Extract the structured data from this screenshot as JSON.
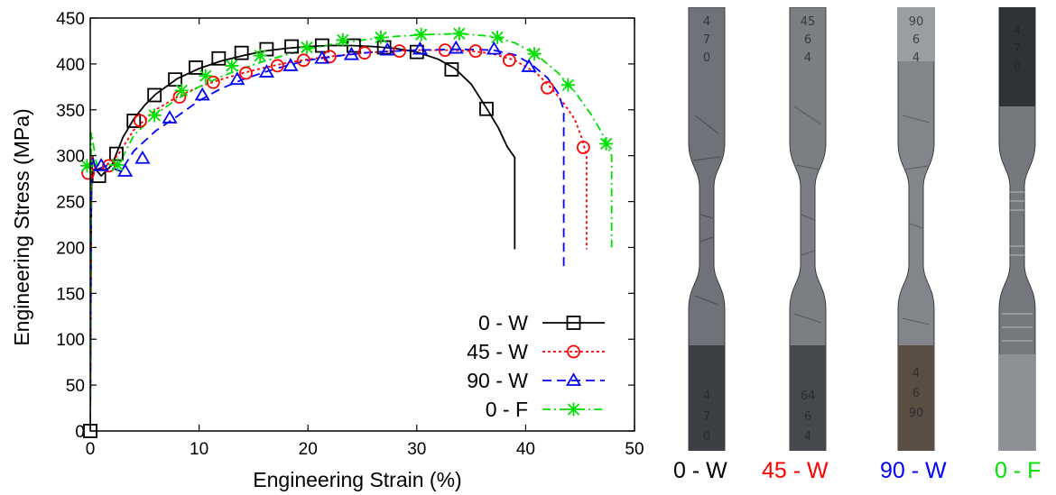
{
  "colors": {
    "s0w": "#000000",
    "s45w": "#ff0000",
    "s90w": "#0000ff",
    "s0f": "#00e000"
  },
  "chart_data": {
    "type": "line",
    "xlabel": "Engineering Strain (%)",
    "ylabel": "Engineering Stress (MPa)",
    "xlim": [
      0,
      50
    ],
    "ylim": [
      0,
      450
    ],
    "xticks": [
      0,
      10,
      20,
      30,
      40,
      50
    ],
    "yticks": [
      0,
      50,
      100,
      150,
      200,
      250,
      300,
      350,
      400,
      450
    ],
    "legend_position": "bottom-right",
    "series": [
      {
        "name": "0 - W",
        "color": "#000000",
        "line_style": "solid",
        "marker": "square",
        "points": [
          [
            0,
            0
          ],
          [
            0.1,
            250
          ],
          [
            0.2,
            300
          ],
          [
            0.5,
            285
          ],
          [
            1,
            278
          ],
          [
            2,
            290
          ],
          [
            3,
            320
          ],
          [
            4,
            340
          ],
          [
            5,
            355
          ],
          [
            6,
            367
          ],
          [
            8,
            384
          ],
          [
            10,
            395
          ],
          [
            12,
            403
          ],
          [
            14,
            409
          ],
          [
            16,
            414
          ],
          [
            18,
            417
          ],
          [
            20,
            419
          ],
          [
            22,
            420
          ],
          [
            24,
            420
          ],
          [
            26,
            419
          ],
          [
            28,
            417
          ],
          [
            30,
            413
          ],
          [
            32,
            405
          ],
          [
            33.5,
            395
          ],
          [
            35,
            378
          ],
          [
            36.5,
            350
          ],
          [
            37.5,
            330
          ],
          [
            38.3,
            310
          ],
          [
            39,
            298
          ],
          [
            39,
            198
          ]
        ],
        "markers": [
          [
            0,
            0
          ],
          [
            0.8,
            278
          ],
          [
            2.4,
            302
          ],
          [
            4,
            338
          ],
          [
            5.9,
            366
          ],
          [
            7.8,
            383
          ],
          [
            9.7,
            396
          ],
          [
            11.8,
            406
          ],
          [
            13.9,
            412
          ],
          [
            16.2,
            416
          ],
          [
            18.5,
            419
          ],
          [
            21.3,
            420
          ],
          [
            24.2,
            420
          ],
          [
            27,
            418
          ],
          [
            30,
            413
          ],
          [
            33.2,
            394
          ],
          [
            36.4,
            351
          ]
        ]
      },
      {
        "name": "45 - W",
        "color": "#ff0000",
        "line_style": "dotted",
        "marker": "circle",
        "points": [
          [
            0,
            0
          ],
          [
            0.1,
            250
          ],
          [
            0.15,
            300
          ],
          [
            0.5,
            284
          ],
          [
            1.5,
            290
          ],
          [
            2.5,
            300
          ],
          [
            4,
            328
          ],
          [
            6,
            350
          ],
          [
            8,
            364
          ],
          [
            10,
            375
          ],
          [
            12,
            383
          ],
          [
            14,
            390
          ],
          [
            16,
            396
          ],
          [
            18,
            401
          ],
          [
            20,
            405
          ],
          [
            22,
            408
          ],
          [
            25,
            412
          ],
          [
            28,
            414
          ],
          [
            30,
            415
          ],
          [
            33,
            415
          ],
          [
            35,
            414
          ],
          [
            37,
            411
          ],
          [
            39,
            404
          ],
          [
            41,
            390
          ],
          [
            42.5,
            372
          ],
          [
            43.5,
            357
          ],
          [
            44.5,
            340
          ],
          [
            45.2,
            318
          ],
          [
            45.6,
            300
          ],
          [
            45.6,
            198
          ]
        ],
        "markers": [
          [
            -0.2,
            281
          ],
          [
            1.7,
            289
          ],
          [
            4.6,
            338
          ],
          [
            8.2,
            364
          ],
          [
            11.3,
            380
          ],
          [
            14.3,
            390
          ],
          [
            17.2,
            398
          ],
          [
            19.6,
            404
          ],
          [
            22,
            408
          ],
          [
            25.2,
            412
          ],
          [
            28.4,
            414
          ],
          [
            32.6,
            415
          ],
          [
            35.4,
            414
          ],
          [
            38.5,
            404
          ],
          [
            42,
            374
          ],
          [
            45.3,
            309
          ]
        ]
      },
      {
        "name": "90 - W",
        "color": "#0000ff",
        "line_style": "dashed",
        "marker": "triangle",
        "points": [
          [
            0,
            0
          ],
          [
            0.1,
            250
          ],
          [
            0.15,
            298
          ],
          [
            0.6,
            285
          ],
          [
            1.5,
            289
          ],
          [
            2.8,
            283
          ],
          [
            4,
            305
          ],
          [
            6,
            327
          ],
          [
            8,
            343
          ],
          [
            10,
            360
          ],
          [
            12,
            373
          ],
          [
            14,
            383
          ],
          [
            16,
            391
          ],
          [
            18,
            398
          ],
          [
            20,
            404
          ],
          [
            23,
            409
          ],
          [
            26,
            413
          ],
          [
            30,
            415
          ],
          [
            34,
            416
          ],
          [
            37,
            415
          ],
          [
            39,
            410
          ],
          [
            40.5,
            400
          ],
          [
            42,
            385
          ],
          [
            43,
            368
          ],
          [
            43.5,
            350
          ],
          [
            43.5,
            178
          ]
        ],
        "markers": [
          [
            1,
            289
          ],
          [
            3.2,
            283
          ],
          [
            4.8,
            297
          ],
          [
            7.3,
            341
          ],
          [
            10.3,
            366
          ],
          [
            13.5,
            383
          ],
          [
            16.2,
            391
          ],
          [
            18.4,
            398
          ],
          [
            21.3,
            406
          ],
          [
            24,
            410
          ],
          [
            27.3,
            415
          ],
          [
            30.3,
            416
          ],
          [
            33.6,
            417
          ],
          [
            37.1,
            416
          ],
          [
            40.3,
            397
          ]
        ]
      },
      {
        "name": "0 - F",
        "color": "#00e000",
        "line_style": "dashdot",
        "marker": "asterisk",
        "points": [
          [
            0,
            0
          ],
          [
            0.05,
            260
          ],
          [
            0.1,
            325
          ],
          [
            0.6,
            290
          ],
          [
            1.5,
            290
          ],
          [
            2.6,
            290
          ],
          [
            4,
            322
          ],
          [
            6,
            345
          ],
          [
            8,
            362
          ],
          [
            10,
            375
          ],
          [
            12,
            386
          ],
          [
            14,
            395
          ],
          [
            16,
            403
          ],
          [
            18,
            410
          ],
          [
            20,
            416
          ],
          [
            22,
            421
          ],
          [
            25,
            426
          ],
          [
            28,
            430
          ],
          [
            31,
            432
          ],
          [
            34,
            433
          ],
          [
            37,
            430
          ],
          [
            39,
            423
          ],
          [
            41,
            410
          ],
          [
            43,
            390
          ],
          [
            44.5,
            370
          ],
          [
            46,
            345
          ],
          [
            47,
            325
          ],
          [
            47.9,
            300
          ],
          [
            47.9,
            200
          ]
        ],
        "markers": [
          [
            -0.3,
            289
          ],
          [
            2.5,
            290
          ],
          [
            5.9,
            344
          ],
          [
            8.4,
            371
          ],
          [
            10.6,
            387
          ],
          [
            13,
            398
          ],
          [
            15.6,
            409
          ],
          [
            19.9,
            418
          ],
          [
            23.2,
            426
          ],
          [
            26.7,
            429
          ],
          [
            30.4,
            432
          ],
          [
            33.9,
            433
          ],
          [
            37.4,
            429
          ],
          [
            40.8,
            411
          ],
          [
            43.9,
            377
          ],
          [
            47.4,
            313
          ]
        ]
      }
    ]
  },
  "specimens": {
    "items": [
      {
        "label": "0 - W",
        "top_text": [
          "4",
          "7",
          "0"
        ],
        "bottom_text": [
          "4",
          "7",
          "0"
        ]
      },
      {
        "label": "45 - W",
        "top_text": [
          "45",
          "6",
          "4"
        ],
        "bottom_text": [
          "64",
          "6",
          "4"
        ]
      },
      {
        "label": "90 - W",
        "top_text": [
          "90",
          "6",
          "4"
        ],
        "bottom_text": [
          "4",
          "6",
          "90"
        ]
      },
      {
        "label": "0 - F",
        "top_text": [
          "4",
          "7",
          "0"
        ],
        "bottom_text": []
      }
    ]
  }
}
